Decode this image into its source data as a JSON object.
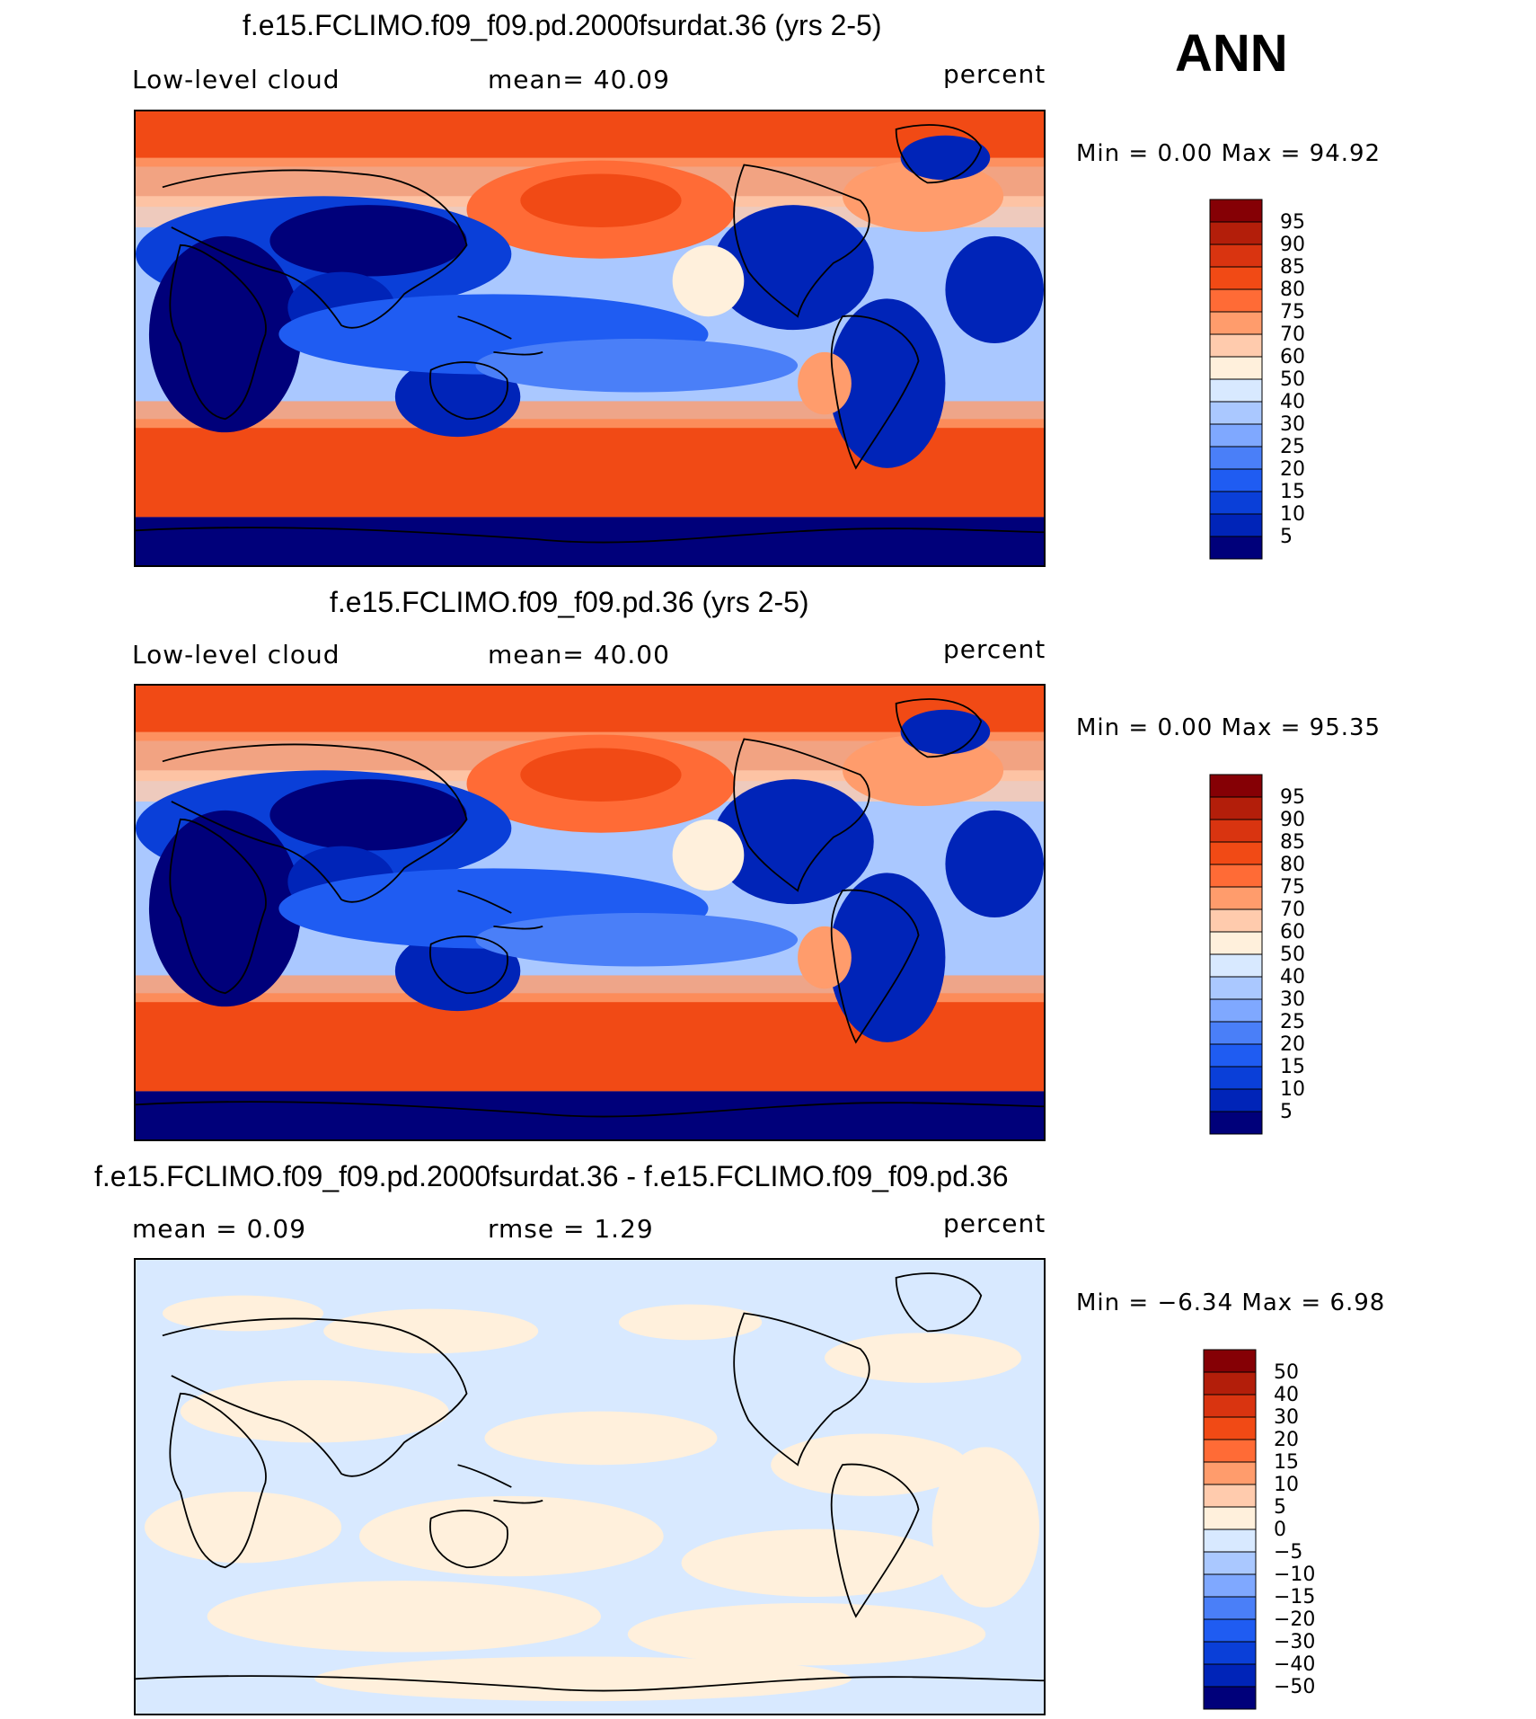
{
  "season": "ANN",
  "colors": {
    "abs_scale": [
      "#00007a",
      "#0024b8",
      "#0a3fd8",
      "#1f5cf2",
      "#4a7ff8",
      "#7fa8ff",
      "#aac8ff",
      "#d8e9ff",
      "#fff0dc",
      "#ffcbad",
      "#ff9c6c",
      "#ff6b36",
      "#f14a15",
      "#d93410",
      "#b31e0a",
      "#850005"
    ],
    "diff_scale": [
      "#00007a",
      "#0024b8",
      "#0a3fd8",
      "#1f5cf2",
      "#4a7ff8",
      "#7fa8ff",
      "#aac8ff",
      "#d8e9ff",
      "#fff0dc",
      "#ffcbad",
      "#ff9c6c",
      "#ff6b36",
      "#f14a15",
      "#d93410",
      "#b31e0a",
      "#850005"
    ],
    "land_outline": "#000000"
  },
  "chart_data": [
    {
      "type": "heatmap",
      "title": "f.e15.FCLIMO.f09_f09.pd.2000fsurdat.36 (yrs 2-5)",
      "left_label": "Low-level cloud",
      "center_label": "mean=   40.09",
      "units": "percent",
      "minmax": "Min =     0.00 Max =    94.92",
      "levels": [
        "95",
        "90",
        "85",
        "80",
        "75",
        "70",
        "60",
        "50",
        "40",
        "30",
        "25",
        "20",
        "15",
        "10",
        "5"
      ]
    },
    {
      "type": "heatmap",
      "title": "f.e15.FCLIMO.f09_f09.pd.36 (yrs 2-5)",
      "left_label": "Low-level cloud",
      "center_label": "mean=   40.00",
      "units": "percent",
      "minmax": "Min =     0.00 Max =    95.35",
      "levels": [
        "95",
        "90",
        "85",
        "80",
        "75",
        "70",
        "60",
        "50",
        "40",
        "30",
        "25",
        "20",
        "15",
        "10",
        "5"
      ]
    },
    {
      "type": "heatmap",
      "title": "f.e15.FCLIMO.f09_f09.pd.2000fsurdat.36 - f.e15.FCLIMO.f09_f09.pd.36",
      "left_label": "mean =     0.09",
      "center_label": "rmse =     1.29",
      "units": "percent",
      "minmax": "Min =   −6.34 Max =     6.98",
      "levels": [
        "50",
        "40",
        "30",
        "20",
        "15",
        "10",
        "5",
        "0",
        "−5",
        "−10",
        "−15",
        "−20",
        "−30",
        "−40",
        "−50"
      ]
    }
  ]
}
